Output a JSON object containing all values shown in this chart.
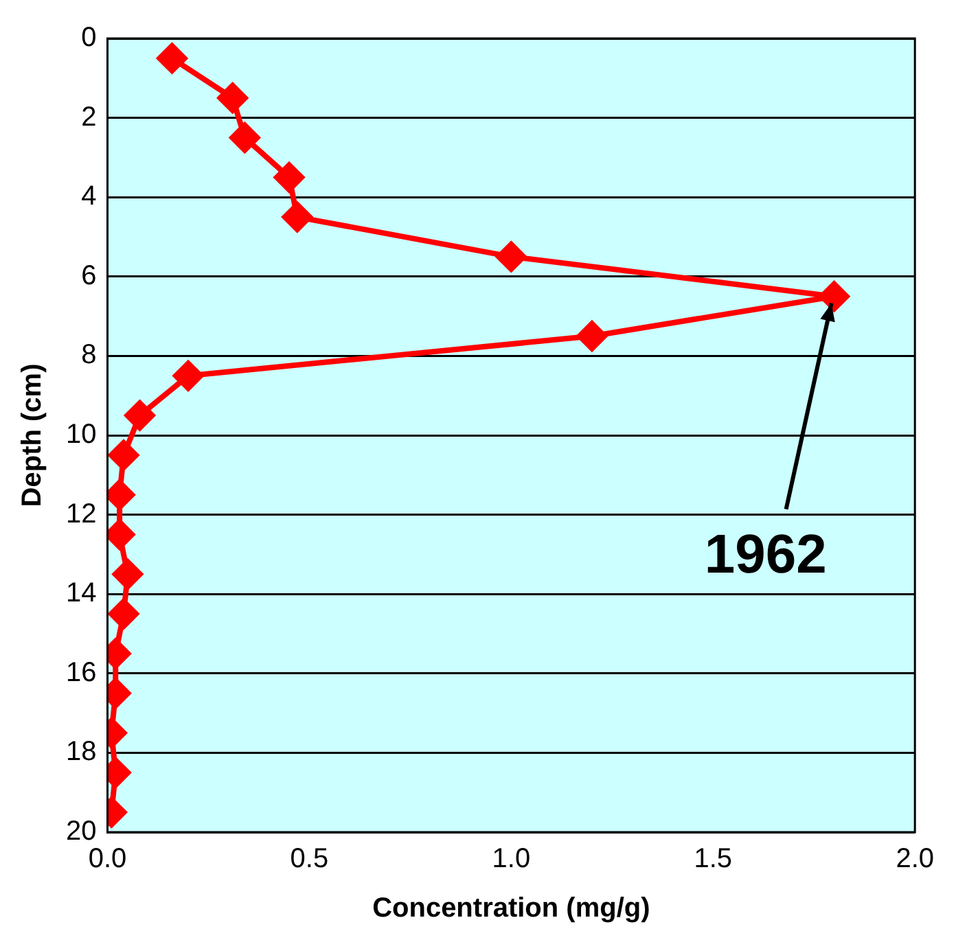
{
  "chart_data": {
    "type": "line",
    "xlabel": "Concentration (mg/g)",
    "ylabel": "Depth (cm)",
    "x": [
      0.16,
      0.31,
      0.34,
      0.45,
      0.47,
      1.0,
      1.8,
      1.2,
      0.2,
      0.08,
      0.04,
      0.03,
      0.03,
      0.05,
      0.04,
      0.02,
      0.02,
      0.01,
      0.02,
      0.01
    ],
    "series": [
      {
        "color": "#ff0000",
        "values": [
          0.5,
          1.5,
          2.5,
          3.5,
          4.5,
          5.5,
          6.5,
          7.5,
          8.5,
          9.5,
          10.5,
          11.5,
          12.5,
          13.5,
          14.5,
          15.5,
          16.5,
          17.5,
          18.5,
          19.5
        ]
      }
    ],
    "xlim": [
      0,
      2
    ],
    "xticks": [
      {
        "value": 0,
        "label": "0.0"
      },
      {
        "value": 0.5,
        "label": "0.5"
      },
      {
        "value": 1,
        "label": "1.0"
      },
      {
        "value": 1.5,
        "label": "1.5"
      },
      {
        "value": 2,
        "label": "2.0"
      }
    ],
    "ylim": [
      20,
      0
    ],
    "yticks": [
      0,
      2,
      4,
      6,
      8,
      10,
      12,
      14,
      16,
      18,
      20
    ],
    "grid": "y",
    "marker": "diamond",
    "line_style": "solid",
    "legend": false,
    "annotations": [
      {
        "text": "1962",
        "x": 1.8,
        "y": 6.5
      }
    ]
  }
}
